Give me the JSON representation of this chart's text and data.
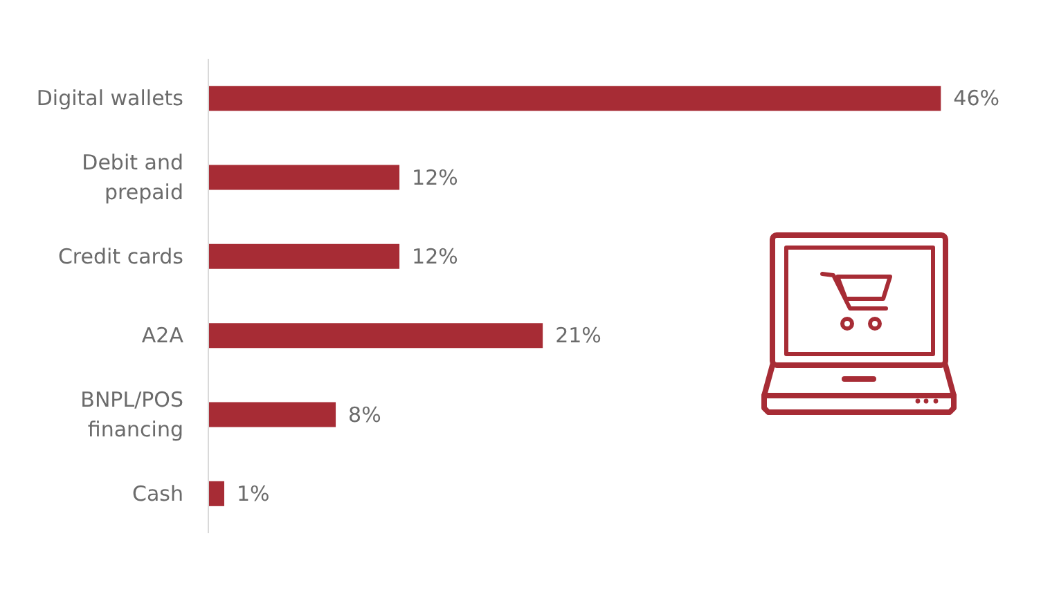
{
  "chart_data": {
    "type": "bar",
    "orientation": "horizontal",
    "categories": [
      "Digital wallets",
      "Debit and prepaid",
      "Credit cards",
      "A2A",
      "BNPL/POS financing",
      "Cash"
    ],
    "values": [
      46,
      12,
      12,
      21,
      8,
      1
    ],
    "value_labels": [
      "46%",
      "12%",
      "12%",
      "21%",
      "8%",
      "1%"
    ],
    "color": "#a72c35",
    "grid": false,
    "tick_labels": "y"
  }
}
